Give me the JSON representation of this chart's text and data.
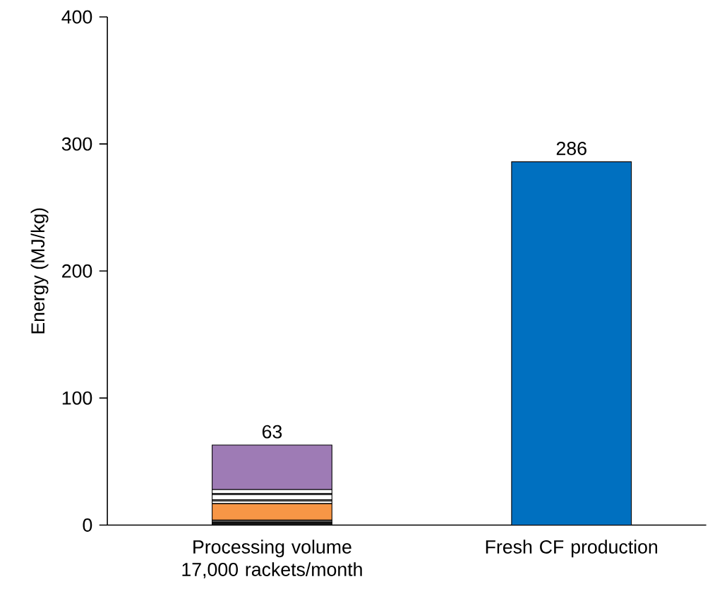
{
  "chart_data": {
    "type": "bar",
    "stacked": true,
    "ylabel": "Energy (MJ/kg)",
    "categories": [
      "Processing volume 17,000 rackets/month",
      "Fresh CF production"
    ],
    "series": [
      {
        "color": "#1a1a1a",
        "values": [
          2,
          null
        ]
      },
      {
        "color": "#4d4d4d",
        "values": [
          2,
          null
        ]
      },
      {
        "color": "#f79646",
        "values": [
          13,
          null
        ]
      },
      {
        "color": "#ffffff",
        "values": [
          2,
          null
        ]
      },
      {
        "color": "#808080",
        "values": [
          1,
          null
        ]
      },
      {
        "color": "#ffffff",
        "values": [
          4,
          null
        ]
      },
      {
        "color": "#808080",
        "values": [
          1,
          null
        ]
      },
      {
        "color": "#ffffff",
        "values": [
          3,
          null
        ]
      },
      {
        "color": "#9e7bb5",
        "values": [
          35,
          null
        ]
      },
      {
        "color": "#0070c0",
        "values": [
          null,
          286
        ]
      }
    ],
    "ylim": [
      0,
      400
    ],
    "yticks": [
      0,
      100,
      200,
      300,
      400
    ],
    "totals": [
      "63",
      "286"
    ]
  }
}
